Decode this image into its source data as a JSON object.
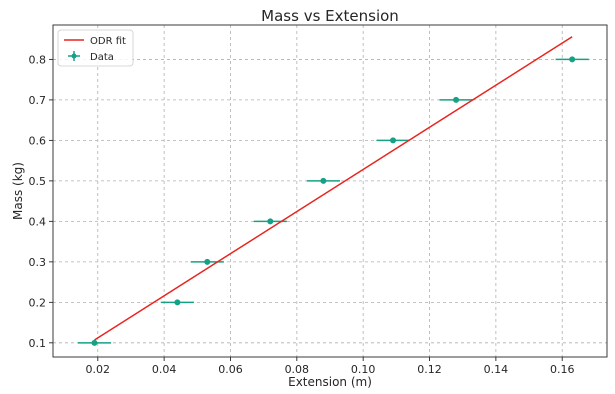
{
  "chart_data": {
    "type": "scatter",
    "title": "Mass vs Extension",
    "xlabel": "Extension (m)",
    "ylabel": "Mass (kg)",
    "xlim": [
      0.0065,
      0.1735
    ],
    "ylim": [
      0.065,
      0.885
    ],
    "xticks": [
      0.02,
      0.04,
      0.06,
      0.08,
      0.1,
      0.12,
      0.14,
      0.16
    ],
    "xtick_labels": [
      "0.02",
      "0.04",
      "0.06",
      "0.08",
      "0.10",
      "0.12",
      "0.14",
      "0.16"
    ],
    "yticks": [
      0.1,
      0.2,
      0.3,
      0.4,
      0.5,
      0.6,
      0.7,
      0.8
    ],
    "ytick_labels": [
      "0.1",
      "0.2",
      "0.3",
      "0.4",
      "0.5",
      "0.6",
      "0.7",
      "0.8"
    ],
    "grid": true,
    "legend_position": "top-left",
    "series": [
      {
        "name": "Data",
        "kind": "errorbar",
        "color": "#16a085",
        "x": [
          0.019,
          0.044,
          0.053,
          0.072,
          0.088,
          0.109,
          0.128,
          0.163
        ],
        "y": [
          0.1,
          0.2,
          0.3,
          0.4,
          0.5,
          0.6,
          0.7,
          0.8
        ],
        "xerr": [
          0.005,
          0.005,
          0.005,
          0.005,
          0.005,
          0.005,
          0.005,
          0.005
        ]
      },
      {
        "name": "ODR fit",
        "kind": "line",
        "color": "#e8251f",
        "x": [
          0.019,
          0.163
        ],
        "y": [
          0.107,
          0.856
        ]
      }
    ],
    "legend": [
      {
        "label": "ODR fit",
        "kind": "line",
        "color": "#e8251f"
      },
      {
        "label": "Data",
        "kind": "errorbar",
        "color": "#16a085"
      }
    ]
  }
}
